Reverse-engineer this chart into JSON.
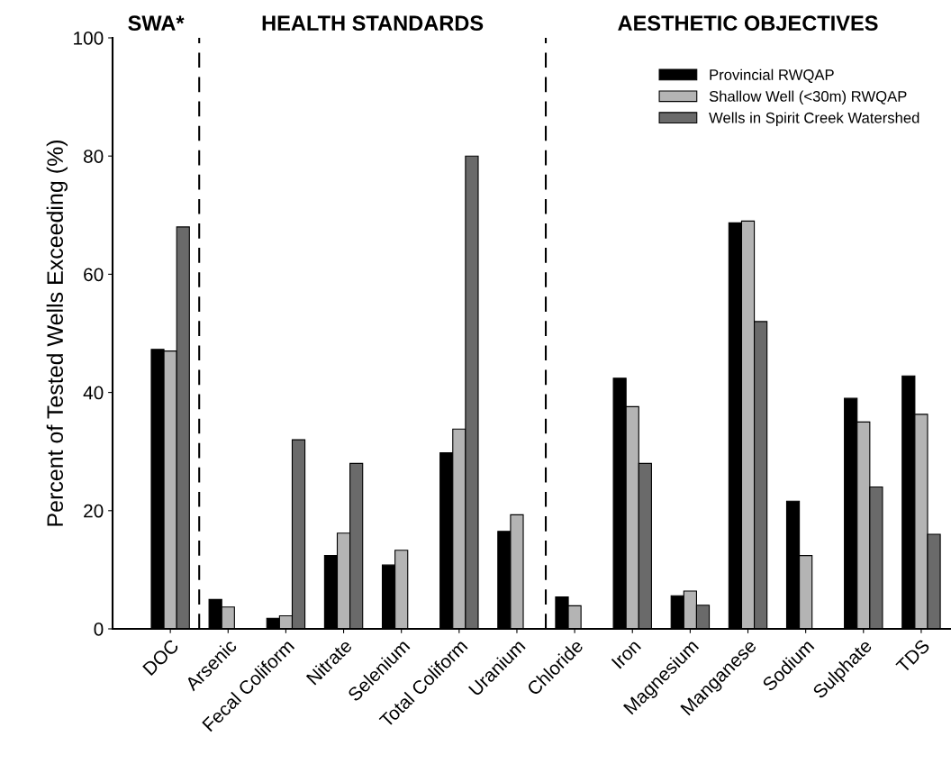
{
  "chart_data": {
    "type": "bar",
    "ylabel": "Percent of Tested Wells Exceeding (%)",
    "categories": [
      "DOC",
      "Arsenic",
      "Fecal Coliform",
      "Nitrate",
      "Selenium",
      "Total Coliform",
      "Uranium",
      "Chloride",
      "Iron",
      "Magnesium",
      "Manganese",
      "Sodium",
      "Sulphate",
      "TDS"
    ],
    "series": [
      {
        "name": "Provincial RWQAP",
        "color": "#000000",
        "values": [
          47.3,
          5,
          1.8,
          12.4,
          10.8,
          29.8,
          16.5,
          5.4,
          42.4,
          5.6,
          68.7,
          21.6,
          39,
          42.8
        ]
      },
      {
        "name": "Shallow Well (<30m) RWQAP",
        "color": "#b4b4b4",
        "values": [
          47,
          3.7,
          2.2,
          16.2,
          13.3,
          33.8,
          19.3,
          3.9,
          37.6,
          6.4,
          69,
          12.4,
          35,
          36.3
        ]
      },
      {
        "name": "Wells in Spirit Creek Watershed",
        "color": "#6a6a6a",
        "values": [
          68,
          null,
          32,
          28,
          null,
          80,
          null,
          null,
          28,
          4,
          52,
          null,
          24,
          16
        ]
      }
    ],
    "ylim": [
      0,
      100
    ],
    "yticks": [
      0,
      20,
      40,
      60,
      80,
      100
    ],
    "annotations": [
      "SWA*",
      "HEALTH STANDARDS",
      "AESTHETIC OBJECTIVES"
    ],
    "legend": "top right",
    "grid": false
  }
}
